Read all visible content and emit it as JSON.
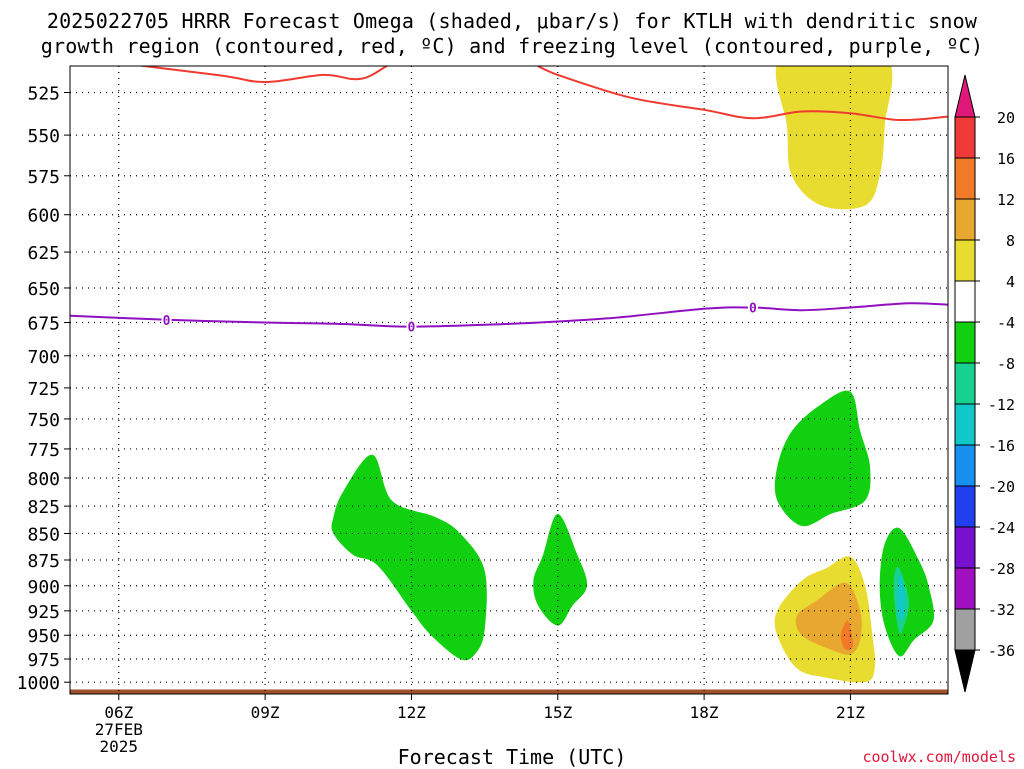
{
  "title_line1": "2025022705 HRRR Forecast Omega (shaded, μbar/s) for KTLH with dendritic snow",
  "title_line2": "growth region (contoured, red, ºC) and freezing level (contoured, purple, ºC)",
  "credit": "coolwx.com/models",
  "chart_data": {
    "type": "contour",
    "xlabel": "Forecast Time (UTC)",
    "ylabel": "",
    "x_ticks": [
      {
        "hour": 6,
        "label": "06Z",
        "sub1": "27FEB",
        "sub2": "2025"
      },
      {
        "hour": 9,
        "label": "09Z"
      },
      {
        "hour": 12,
        "label": "12Z"
      },
      {
        "hour": 15,
        "label": "15Z"
      },
      {
        "hour": 18,
        "label": "18Z"
      },
      {
        "hour": 21,
        "label": "21Z"
      }
    ],
    "xlim": [
      5.0,
      23.0
    ],
    "y_ticks": [
      525,
      550,
      575,
      600,
      625,
      650,
      675,
      700,
      725,
      750,
      775,
      800,
      825,
      850,
      875,
      900,
      925,
      950,
      975,
      1000
    ],
    "ylim": [
      510,
      1013
    ],
    "y_scale": "log",
    "grid": true,
    "colorbar": {
      "labels": [
        "20",
        "16",
        "12",
        "8",
        "4",
        "-4",
        "-8",
        "-12",
        "-16",
        "-20",
        "-24",
        "-28",
        "-32",
        "-36"
      ],
      "colors": [
        "#f03a3a",
        "#f07a28",
        "#e8a830",
        "#e8dc30",
        "#ffffff",
        "#10d010",
        "#18d090",
        "#10c8c8",
        "#1890f0",
        "#2040f0",
        "#7810d0",
        "#a010c0",
        "#a0a0a0"
      ],
      "top_color": "#e0187a",
      "bottom_color": "#000000"
    },
    "red_contour_dgz": [
      [
        5.0,
        505
      ],
      [
        8.0,
        515
      ],
      [
        9.0,
        519
      ],
      [
        10.2,
        515
      ],
      [
        11.0,
        517
      ],
      [
        12.0,
        505
      ],
      [
        14.0,
        505
      ],
      [
        15.0,
        515
      ],
      [
        16.5,
        528
      ],
      [
        18.0,
        535
      ],
      [
        19.0,
        540
      ],
      [
        20.0,
        536
      ],
      [
        21.0,
        537
      ],
      [
        22.0,
        541
      ],
      [
        23.0,
        539
      ]
    ],
    "purple_contour_freezing": [
      [
        5.0,
        670
      ],
      [
        7.0,
        673
      ],
      [
        9.0,
        675
      ],
      [
        10.5,
        676
      ],
      [
        12.0,
        678
      ],
      [
        14.0,
        676
      ],
      [
        16.0,
        672
      ],
      [
        18.0,
        665
      ],
      [
        19.0,
        664
      ],
      [
        20.0,
        666
      ],
      [
        21.0,
        664
      ],
      [
        22.2,
        661
      ],
      [
        23.0,
        662
      ]
    ],
    "purple_labels": [
      {
        "x": 6.98,
        "p": 673,
        "text": "0"
      },
      {
        "x": 12.0,
        "p": 678,
        "text": "0"
      },
      {
        "x": 19.0,
        "p": 664,
        "text": "0"
      }
    ],
    "omega_regions": [
      {
        "level": "4",
        "color": "#e8dc30",
        "points": [
          [
            19.6,
            505
          ],
          [
            21.7,
            505
          ],
          [
            21.7,
            545
          ],
          [
            21.6,
            575
          ],
          [
            21.3,
            594
          ],
          [
            20.4,
            594
          ],
          [
            19.8,
            575
          ],
          [
            19.7,
            545
          ]
        ]
      },
      {
        "level": "-4",
        "color": "#10d010",
        "points": [
          [
            11.2,
            780
          ],
          [
            11.6,
            820
          ],
          [
            12.5,
            835
          ],
          [
            13.0,
            850
          ],
          [
            13.5,
            885
          ],
          [
            13.5,
            945
          ],
          [
            13.3,
            970
          ],
          [
            13.0,
            975
          ],
          [
            12.4,
            950
          ],
          [
            12.0,
            925
          ],
          [
            11.3,
            880
          ],
          [
            10.8,
            870
          ],
          [
            10.4,
            850
          ],
          [
            10.4,
            835
          ],
          [
            10.6,
            812
          ]
        ]
      },
      {
        "level": "-4",
        "color": "#10d010",
        "points": [
          [
            15.0,
            832
          ],
          [
            15.4,
            870
          ],
          [
            15.6,
            900
          ],
          [
            15.3,
            920
          ],
          [
            15.0,
            940
          ],
          [
            14.6,
            920
          ],
          [
            14.5,
            895
          ],
          [
            14.7,
            870
          ]
        ]
      },
      {
        "level": "-4",
        "color": "#10d010",
        "points": [
          [
            21.0,
            728
          ],
          [
            21.2,
            760
          ],
          [
            21.4,
            790
          ],
          [
            21.3,
            820
          ],
          [
            20.6,
            832
          ],
          [
            20.0,
            843
          ],
          [
            19.5,
            820
          ],
          [
            19.5,
            790
          ],
          [
            19.8,
            760
          ],
          [
            20.4,
            738
          ]
        ]
      },
      {
        "level": "-4",
        "color": "#10d010",
        "points": [
          [
            22.0,
            845
          ],
          [
            22.4,
            875
          ],
          [
            22.6,
            900
          ],
          [
            22.7,
            935
          ],
          [
            22.3,
            955
          ],
          [
            22.0,
            972
          ],
          [
            21.7,
            940
          ],
          [
            21.6,
            900
          ],
          [
            21.7,
            860
          ]
        ]
      },
      {
        "level": "-8",
        "color": "#18d090",
        "points": [
          [
            22.0,
            883
          ],
          [
            22.2,
            915
          ],
          [
            22.1,
            940
          ],
          [
            22.0,
            947
          ],
          [
            21.9,
            915
          ],
          [
            21.9,
            890
          ]
        ]
      },
      {
        "level": "-12",
        "color": "#10c8c8",
        "points": [
          [
            22.02,
            888
          ],
          [
            22.12,
            915
          ],
          [
            22.02,
            935
          ],
          [
            21.95,
            915
          ]
        ]
      },
      {
        "level": "4",
        "color": "#e8dc30",
        "points": [
          [
            21.0,
            872
          ],
          [
            21.3,
            900
          ],
          [
            21.45,
            950
          ],
          [
            21.5,
            985
          ],
          [
            21.3,
            1000
          ],
          [
            20.5,
            995
          ],
          [
            19.9,
            985
          ],
          [
            19.5,
            950
          ],
          [
            19.5,
            925
          ],
          [
            20.0,
            895
          ],
          [
            20.5,
            883
          ]
        ]
      },
      {
        "level": "8",
        "color": "#e8a830",
        "points": [
          [
            20.9,
            897
          ],
          [
            21.2,
            925
          ],
          [
            21.2,
            955
          ],
          [
            21.0,
            970
          ],
          [
            20.6,
            965
          ],
          [
            20.0,
            950
          ],
          [
            19.9,
            930
          ],
          [
            20.3,
            915
          ]
        ]
      },
      {
        "level": "12",
        "color": "#f07a28",
        "points": [
          [
            20.95,
            935
          ],
          [
            21.05,
            960
          ],
          [
            20.9,
            965
          ],
          [
            20.8,
            950
          ]
        ]
      }
    ],
    "surface_band": {
      "color": "#a0522d",
      "p_top": 1008,
      "p_bottom": 1013
    }
  }
}
